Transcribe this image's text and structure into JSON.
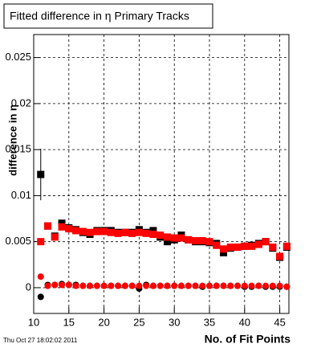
{
  "chart_data": {
    "type": "scatter",
    "title": "Fitted difference in  η Primary Tracks",
    "y_label": "difference in η",
    "x_label": "No. of Fit Points",
    "timestamp": "Thu Oct 27 18:02:02 2011",
    "x": [
      11,
      12,
      13,
      14,
      15,
      16,
      17,
      18,
      19,
      20,
      21,
      22,
      23,
      24,
      25,
      26,
      27,
      28,
      29,
      30,
      31,
      32,
      33,
      34,
      35,
      36,
      37,
      38,
      39,
      40,
      41,
      42,
      43,
      44,
      45,
      46
    ],
    "xlim": [
      10,
      46.3
    ],
    "xticks": [
      10,
      15,
      20,
      25,
      30,
      35,
      40,
      45
    ],
    "ylim": [
      -0.0028,
      0.0275
    ],
    "yticks": [
      0,
      0.005,
      0.01,
      0.015,
      0.02,
      0.025
    ],
    "grid": true,
    "series": [
      {
        "color": "#000000",
        "marker": "square",
        "values": [
          0.0123,
          0.0067,
          0.0056,
          0.007,
          0.0065,
          0.0063,
          0.006,
          0.0058,
          0.0062,
          0.0062,
          0.0062,
          0.006,
          0.006,
          0.006,
          0.0063,
          0.006,
          0.0062,
          0.0055,
          0.005,
          0.0052,
          0.0057,
          0.0052,
          0.005,
          0.005,
          0.0049,
          0.0048,
          0.0038,
          0.0043,
          0.0044,
          0.0045,
          0.0046,
          0.0048,
          0.005,
          0.0043,
          0.0033,
          0.0044
        ],
        "errors": [
          0.0028,
          0.0002,
          0.0002,
          0.0002,
          0.0001,
          0.0001,
          0.0001,
          0.0001,
          0.0001,
          0.0001,
          0.0001,
          0.0001,
          0.0001,
          0.0001,
          0.0001,
          0.0001,
          0.0001,
          0.0001,
          0.0001,
          0.0001,
          0.0001,
          0.0001,
          0.0001,
          0.0001,
          0.0001,
          0.0001,
          0.0001,
          0.0001,
          0.0001,
          0.0001,
          0.0001,
          0.0001,
          0.0001,
          0.0001,
          0.0002,
          0.0002
        ]
      },
      {
        "color": "#000000",
        "marker": "circle",
        "values": [
          -0.001,
          0.0003,
          0.0003,
          0.0004,
          0.0003,
          0.0003,
          0.0002,
          0.0002,
          0.0002,
          0.0002,
          0.0002,
          0.0002,
          0.0002,
          0.0002,
          -0.0001,
          0.0003,
          0.0002,
          0.0002,
          0.0002,
          0.0002,
          0.0002,
          0.0002,
          0.0002,
          0.0001,
          0.0002,
          0.0002,
          0.0002,
          0.0002,
          0.0002,
          0.0001,
          0.0001,
          0.0002,
          0.0001,
          0.0001,
          0.0001,
          0.0001
        ]
      },
      {
        "color": "#ff0000",
        "marker": "square",
        "values": [
          0.005,
          0.0067,
          0.0055,
          0.0066,
          0.0064,
          0.0062,
          0.0061,
          0.006,
          0.0061,
          0.0061,
          0.006,
          0.0059,
          0.006,
          0.0059,
          0.006,
          0.0059,
          0.0058,
          0.0057,
          0.0055,
          0.0054,
          0.0054,
          0.0052,
          0.0051,
          0.0051,
          0.005,
          0.0046,
          0.0042,
          0.0044,
          0.0044,
          0.0045,
          0.0045,
          0.0047,
          0.005,
          0.0044,
          0.0034,
          0.0045
        ]
      },
      {
        "color": "#ff0000",
        "marker": "circle",
        "values": [
          0.0012,
          0.0002,
          0.0003,
          0.0003,
          0.0003,
          0.0002,
          0.0002,
          0.0002,
          0.0002,
          0.0002,
          0.0002,
          0.0002,
          0.0002,
          0.0002,
          0.0002,
          0.0002,
          0.0002,
          0.0002,
          0.0002,
          0.0002,
          0.0002,
          0.0002,
          0.0002,
          0.0002,
          0.0002,
          0.0002,
          0.0002,
          0.0002,
          0.0002,
          0.0002,
          0.0002,
          0.0002,
          0.0002,
          0.0002,
          0.0002,
          0.0001
        ]
      }
    ]
  }
}
